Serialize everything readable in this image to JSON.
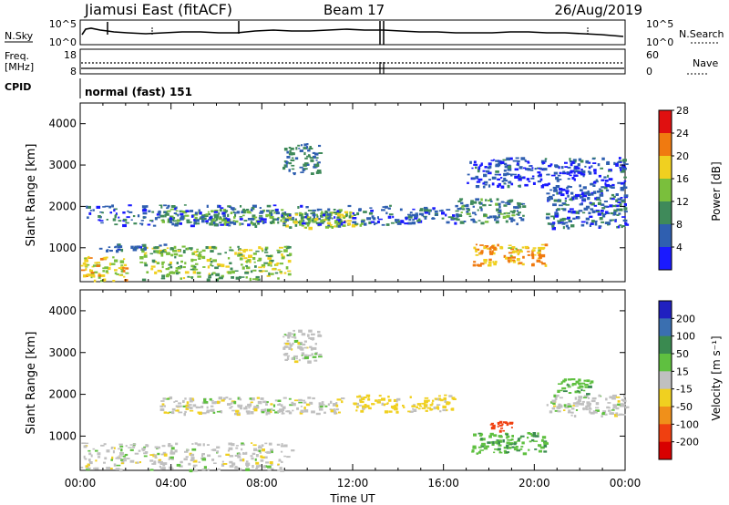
{
  "header": {
    "title": "Jiamusi East (fitACF)",
    "beam": "Beam 17",
    "date": "26/Aug/2019"
  },
  "status_panels": {
    "nsky_label": "N.Sky",
    "nsky_ticks": [
      "10^5",
      "10^0"
    ],
    "nsearch_label": "N.Search",
    "nsearch_ticks": [
      "10^5",
      "10^0"
    ],
    "freq_label_line1": "Freq.",
    "freq_label_line2": "[MHz]",
    "freq_ticks": [
      "18",
      "8"
    ],
    "nave_label": "Nave",
    "nave_ticks": [
      "60",
      "0"
    ],
    "cpid_label": "CPID",
    "cpid_value": "normal (fast) 151"
  },
  "chart_data": [
    {
      "type": "heatmap",
      "name": "power",
      "ylabel": "Slant Range [km]",
      "yticks": [
        1000,
        2000,
        3000,
        4000
      ],
      "ylim": [
        180,
        4500
      ],
      "xlim_hours": [
        0,
        24
      ],
      "colorbar_label": "Power [dB]",
      "colorbar_ticks": [
        "4",
        "8",
        "12",
        "16",
        "20",
        "24",
        "28"
      ],
      "colorbar_colors": [
        "#1a1aff",
        "#2f5fb0",
        "#3f8a5a",
        "#7abf3c",
        "#f0d020",
        "#f07a10",
        "#e01010"
      ],
      "echo_regions": [
        {
          "t": [
            0.0,
            2.0
          ],
          "r": [
            200,
            800
          ],
          "value": 20
        },
        {
          "t": [
            2.6,
            9.2
          ],
          "r": [
            250,
            1050
          ],
          "value": 16
        },
        {
          "t": [
            3.5,
            11.5
          ],
          "r": [
            1600,
            1950
          ],
          "value": 13
        },
        {
          "t": [
            8.8,
            12.5
          ],
          "r": [
            1500,
            1900
          ],
          "value": 16
        },
        {
          "t": [
            8.9,
            10.5
          ],
          "r": [
            2800,
            3550
          ],
          "value": 9
        },
        {
          "t": [
            0.5,
            4.0
          ],
          "r": [
            950,
            1100
          ],
          "value": 8
        },
        {
          "t": [
            0.2,
            14.0
          ],
          "r": [
            1550,
            2050
          ],
          "value": 7
        },
        {
          "t": [
            14.0,
            17.0
          ],
          "r": [
            1600,
            2000
          ],
          "value": 7
        },
        {
          "t": [
            17.2,
            20.5
          ],
          "r": [
            600,
            1100
          ],
          "value": 22
        },
        {
          "t": [
            16.5,
            19.5
          ],
          "r": [
            1600,
            2200
          ],
          "value": 10
        },
        {
          "t": [
            20.5,
            24.0
          ],
          "r": [
            1500,
            2500
          ],
          "value": 7
        },
        {
          "t": [
            17.0,
            24.0
          ],
          "r": [
            2500,
            3200
          ],
          "value": 5
        }
      ]
    },
    {
      "type": "heatmap",
      "name": "velocity",
      "ylabel": "Slant Range [km]",
      "yticks": [
        1000,
        2000,
        3000,
        4000
      ],
      "ylim": [
        180,
        4500
      ],
      "xlim_hours": [
        0,
        24
      ],
      "xlabel": "Time UT",
      "xticks": [
        "00:00",
        "04:00",
        "08:00",
        "12:00",
        "16:00",
        "20:00",
        "00:00"
      ],
      "colorbar_label": "Velocity [m s⁻¹]",
      "colorbar_ticks": [
        "200",
        "100",
        "50",
        "15",
        "-15",
        "-50",
        "-100",
        "-200"
      ],
      "colorbar_colors": [
        "#2020c0",
        "#3a6fb0",
        "#3a8a50",
        "#5fc040",
        "#c0c0c0",
        "#f0d020",
        "#f0901a",
        "#f04010",
        "#d80000"
      ],
      "echo_regions": [
        {
          "t": [
            0.0,
            9.3
          ],
          "r": [
            200,
            850
          ],
          "value": 0
        },
        {
          "t": [
            3.5,
            11.5
          ],
          "r": [
            1550,
            1950
          ],
          "value": 0
        },
        {
          "t": [
            8.9,
            10.5
          ],
          "r": [
            2800,
            3550
          ],
          "value": 0
        },
        {
          "t": [
            12.0,
            16.5
          ],
          "r": [
            1600,
            2000
          ],
          "value": -30
        },
        {
          "t": [
            17.2,
            20.5
          ],
          "r": [
            600,
            1100
          ],
          "value": 40
        },
        {
          "t": [
            18.0,
            19.0
          ],
          "r": [
            1100,
            1400
          ],
          "value": -120
        },
        {
          "t": [
            20.5,
            24.0
          ],
          "r": [
            1500,
            2000
          ],
          "value": 0
        },
        {
          "t": [
            21.0,
            22.5
          ],
          "r": [
            2000,
            2400
          ],
          "value": 40
        }
      ]
    }
  ]
}
